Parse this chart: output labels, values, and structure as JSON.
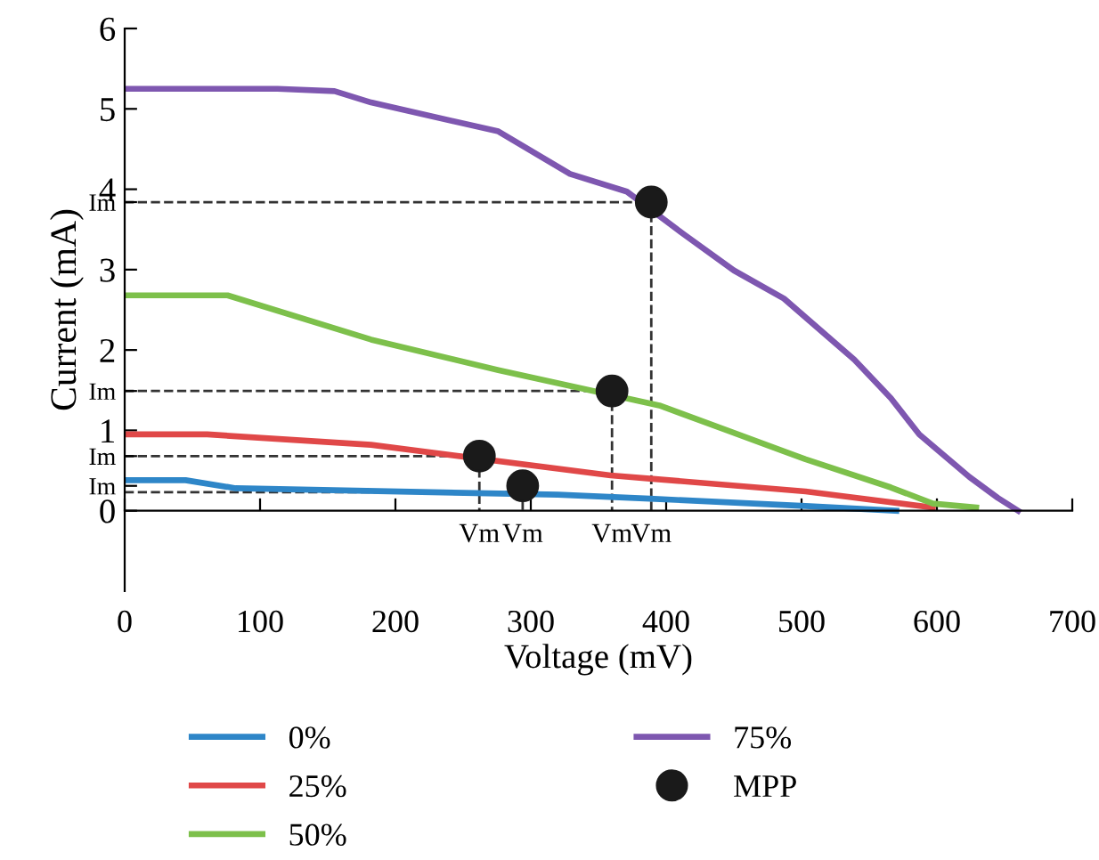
{
  "chart_data": {
    "type": "line",
    "xlabel": "Voltage (mV)",
    "ylabel": "Current (mA)",
    "xlim": [
      0,
      700
    ],
    "ylim": [
      -1,
      6
    ],
    "xticks": [
      0,
      100,
      200,
      300,
      400,
      500,
      600,
      700
    ],
    "annotations": [
      {
        "text": "Vm",
        "x": 262,
        "y": 0
      },
      {
        "text": "Vm",
        "x": 294,
        "y": 0
      },
      {
        "text": "Vm",
        "x": 360,
        "y": 0
      },
      {
        "text": "Vm",
        "x": 389,
        "y": 0
      }
    ],
    "yticks": [
      0,
      1,
      2,
      3,
      4,
      5,
      6,
      {
        "value": 3.84,
        "label": "Im"
      },
      {
        "value": 1.49,
        "label": "Im"
      },
      {
        "value": 0.68,
        "label": "Im"
      },
      {
        "value": 0.31,
        "label": "Im"
      }
    ],
    "legend": "bottom",
    "marker": "none",
    "line_style": "solid",
    "series": [
      {
        "name": "0%",
        "color": "#2e86c8",
        "x": [
          0,
          45,
          82,
          320,
          388,
          503,
          570
        ],
        "values": [
          0.38,
          0.38,
          0.28,
          0.2,
          0.15,
          0.06,
          0
        ]
      },
      {
        "name": "25%",
        "color": "#e04848",
        "x": [
          0,
          61,
          182,
          359,
          388,
          503,
          597
        ],
        "values": [
          0.95,
          0.95,
          0.82,
          0.44,
          0.4,
          0.24,
          0.04
        ]
      },
      {
        "name": "50%",
        "color": "#7dc04b",
        "x": [
          0,
          76,
          182,
          276,
          395,
          445,
          503,
          566,
          597,
          629
        ],
        "values": [
          2.68,
          2.68,
          2.13,
          1.75,
          1.31,
          1.0,
          0.64,
          0.29,
          0.09,
          0.04
        ]
      },
      {
        "name": "75%",
        "color": "#7e57b0",
        "x": [
          0,
          113,
          155,
          182,
          276,
          329,
          371,
          413,
          450,
          487,
          539,
          566,
          587,
          624,
          645,
          660
        ],
        "values": [
          5.25,
          5.25,
          5.22,
          5.08,
          4.72,
          4.19,
          3.97,
          3.44,
          2.99,
          2.64,
          1.88,
          1.4,
          0.95,
          0.42,
          0.16,
          0
        ]
      },
      {
        "line_style": "dashed",
        "color": "#333333",
        "x": [
          0,
          262,
          262
        ],
        "values": [
          0.68,
          0.68,
          0
        ]
      },
      {
        "line_style": "dashed",
        "color": "#333333",
        "x": [
          0,
          294,
          294
        ],
        "values": [
          0.23,
          0.23,
          0
        ]
      },
      {
        "line_style": "dashed",
        "color": "#333333",
        "x": [
          0,
          360,
          360
        ],
        "values": [
          1.49,
          1.49,
          0
        ]
      },
      {
        "line_style": "dashed",
        "color": "#333333",
        "x": [
          0,
          389,
          389
        ],
        "values": [
          3.84,
          3.84,
          0
        ]
      },
      {
        "name": "MPP",
        "type": "scatter",
        "marker": "circle",
        "color": "#1a1a1a",
        "x": [
          262,
          294,
          360,
          389
        ],
        "values": [
          0.68,
          0.31,
          1.49,
          3.84
        ]
      }
    ]
  }
}
